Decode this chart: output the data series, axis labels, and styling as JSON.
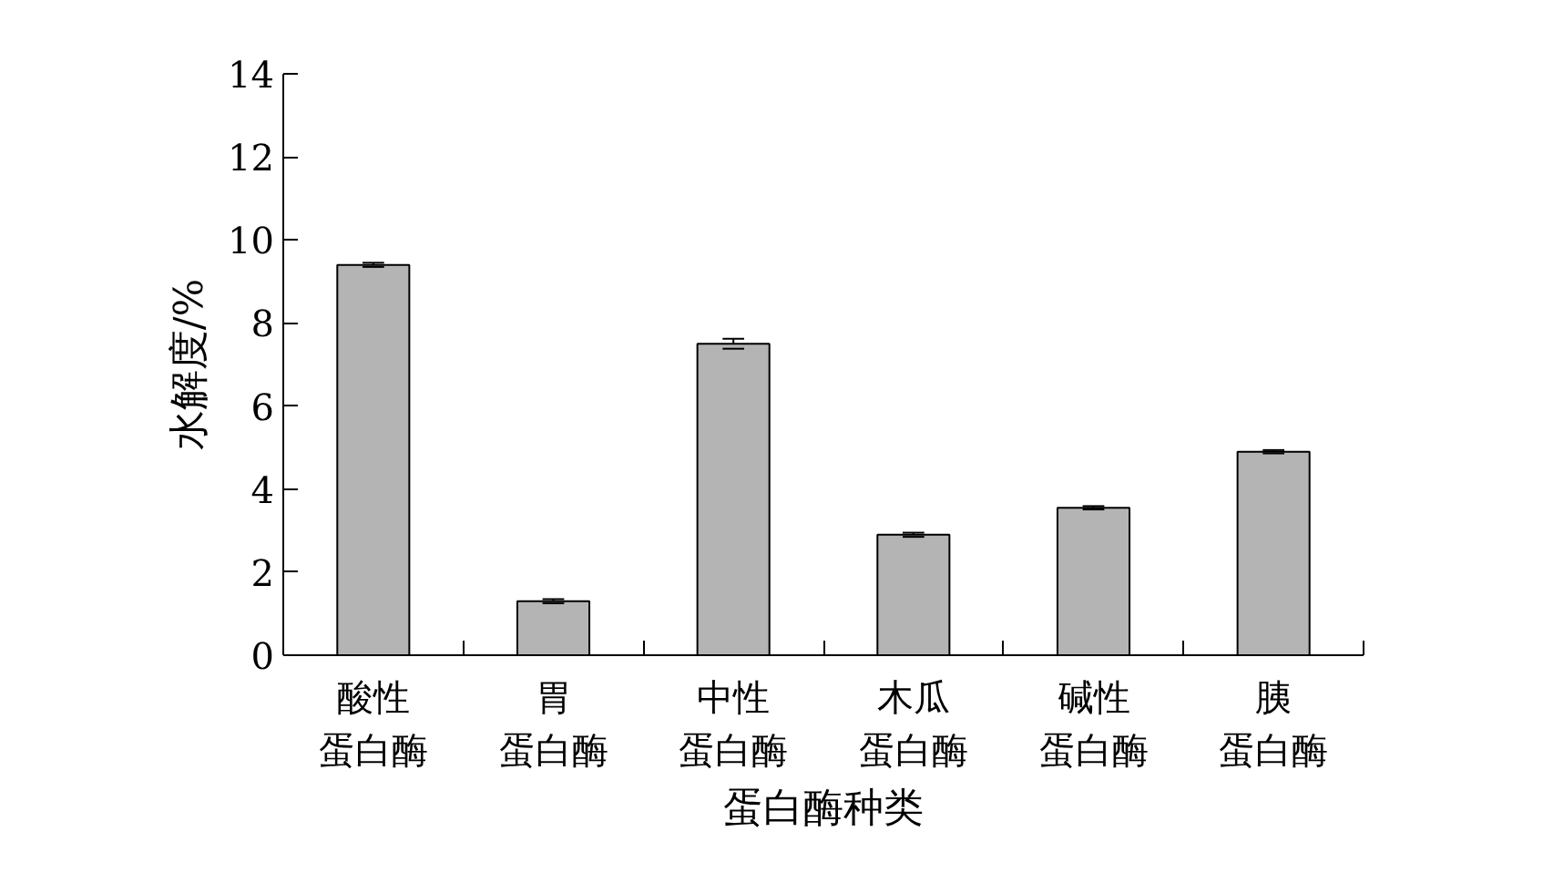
{
  "chart_data": {
    "type": "bar",
    "xlabel": "蛋白酶种类",
    "ylabel": "水解度/%",
    "categories": [
      "酸性蛋白酶",
      "胃蛋白酶",
      "中性蛋白酶",
      "木瓜蛋白酶",
      "碱性蛋白酶",
      "胰蛋白酶"
    ],
    "values": [
      9.4,
      1.3,
      7.5,
      2.9,
      3.55,
      4.9
    ],
    "errors": [
      0.05,
      0.05,
      0.12,
      0.05,
      0.04,
      0.04
    ],
    "color": "#b4b4b4",
    "ylim": [
      0,
      14
    ],
    "yticks": [
      0,
      2,
      4,
      6,
      8,
      10,
      12,
      14
    ],
    "grid": false
  }
}
